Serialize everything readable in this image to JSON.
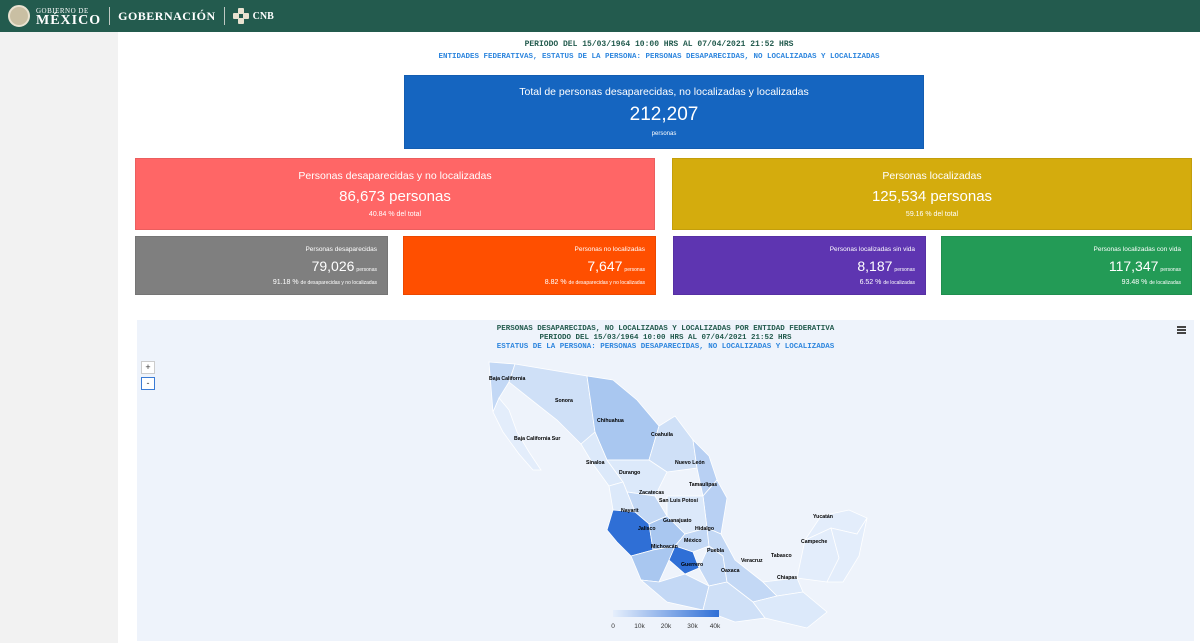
{
  "header": {
    "gob_small": "GOBIERNO DE",
    "gob_big": "MÉXICO",
    "gobernacion": "GOBERNACIÓN",
    "cnb": "CNB"
  },
  "report": {
    "period": "PERIODO DEL 15/03/1964 10:00 HRS AL 07/04/2021 21:52 HRS",
    "subtitle": "ENTIDADES FEDERATIVAS, ESTATUS DE LA PERSONA: PERSONAS DESAPARECIDAS, NO LOCALIZADAS Y LOCALIZADAS"
  },
  "total": {
    "label": "Total de personas desaparecidas, no localizadas y localizadas",
    "value": "212,207",
    "unit": "personas"
  },
  "missing": {
    "label": "Personas desaparecidas y no localizadas",
    "value": "86,673 personas",
    "pct": "40.84 % del total"
  },
  "located": {
    "label": "Personas localizadas",
    "value": "125,534 personas",
    "pct": "59.16 % del total"
  },
  "small_cards": [
    {
      "label": "Personas desaparecidas",
      "value": "79,026",
      "unit": "personas",
      "pct": "91.18 %",
      "desc": "de desaparecidas y no localizadas"
    },
    {
      "label": "Personas no localizadas",
      "value": "7,647",
      "unit": "personas",
      "pct": "8.82 %",
      "desc": "de desaparecidas y no localizadas"
    },
    {
      "label": "Personas localizadas sin vida",
      "value": "8,187",
      "unit": "personas",
      "pct": "6.52 %",
      "desc": "de localizadas"
    },
    {
      "label": "Personas localizadas con vida",
      "value": "117,347",
      "unit": "personas",
      "pct": "93.48 %",
      "desc": "de localizadas"
    }
  ],
  "map": {
    "title1": "PERSONAS DESAPARECIDAS, NO LOCALIZADAS Y LOCALIZADAS POR ENTIDAD FEDERATIVA",
    "title2": "PERIODO DEL 15/03/1964 10:00 HRS AL 07/04/2021 21:52 HRS",
    "title3": "ESTATUS DE LA PERSONA: PERSONAS DESAPARECIDAS, NO LOCALIZADAS Y LOCALIZADAS",
    "zoom_in": "+",
    "zoom_out": "-",
    "states": [
      "Baja California",
      "Sonora",
      "Chihuahua",
      "Coahuila",
      "Baja California Sur",
      "Sinaloa",
      "Nuevo León",
      "Durango",
      "Tamaulipas",
      "Zacatecas",
      "San Luis Potosí",
      "Nayarit",
      "Guanajuato",
      "Jalisco",
      "Hidalgo",
      "México",
      "Michoacán",
      "Puebla",
      "Guerrero",
      "Veracruz",
      "Tabasco",
      "Oaxaca",
      "Chiapas",
      "Campeche",
      "Yucatán"
    ],
    "legend_ticks": [
      "0",
      "10k",
      "20k",
      "30k",
      "40k"
    ],
    "colors": {
      "light": "#dce9fa",
      "mid": "#a9c7f0",
      "dark": "#2f6fd6"
    }
  }
}
